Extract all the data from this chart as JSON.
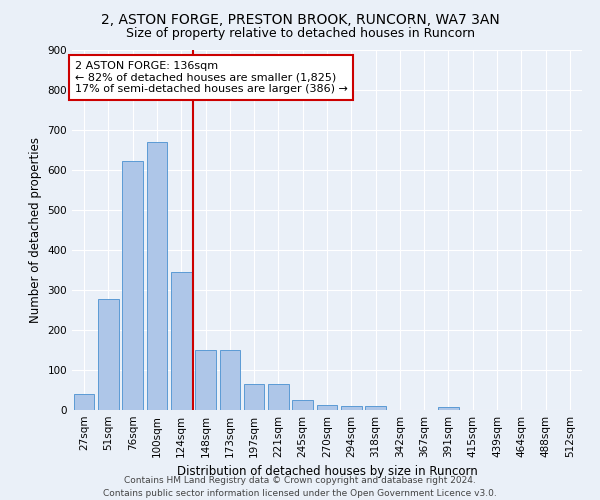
{
  "title_line1": "2, ASTON FORGE, PRESTON BROOK, RUNCORN, WA7 3AN",
  "title_line2": "Size of property relative to detached houses in Runcorn",
  "xlabel": "Distribution of detached houses by size in Runcorn",
  "ylabel": "Number of detached properties",
  "footer_line1": "Contains HM Land Registry data © Crown copyright and database right 2024.",
  "footer_line2": "Contains public sector information licensed under the Open Government Licence v3.0.",
  "categories": [
    "27sqm",
    "51sqm",
    "76sqm",
    "100sqm",
    "124sqm",
    "148sqm",
    "173sqm",
    "197sqm",
    "221sqm",
    "245sqm",
    "270sqm",
    "294sqm",
    "318sqm",
    "342sqm",
    "367sqm",
    "391sqm",
    "415sqm",
    "439sqm",
    "464sqm",
    "488sqm",
    "512sqm"
  ],
  "values": [
    40,
    278,
    622,
    670,
    345,
    150,
    150,
    65,
    65,
    25,
    12,
    11,
    9,
    0,
    0,
    7,
    0,
    0,
    0,
    0,
    0
  ],
  "bar_color": "#aec6e8",
  "bar_edge_color": "#5b9bd5",
  "vline_color": "#cc0000",
  "vline_x": 4.5,
  "annotation_box_color": "#ffffff",
  "annotation_border_color": "#cc0000",
  "annotation_label": "2 ASTON FORGE: 136sqm",
  "annotation_line1": "← 82% of detached houses are smaller (1,825)",
  "annotation_line2": "17% of semi-detached houses are larger (386) →",
  "ylim": [
    0,
    900
  ],
  "yticks": [
    0,
    100,
    200,
    300,
    400,
    500,
    600,
    700,
    800,
    900
  ],
  "background_color": "#eaf0f8",
  "grid_color": "#ffffff",
  "title_fontsize": 10,
  "subtitle_fontsize": 9,
  "axis_label_fontsize": 8.5,
  "tick_fontsize": 7.5,
  "footer_fontsize": 6.5,
  "bar_width": 0.85
}
